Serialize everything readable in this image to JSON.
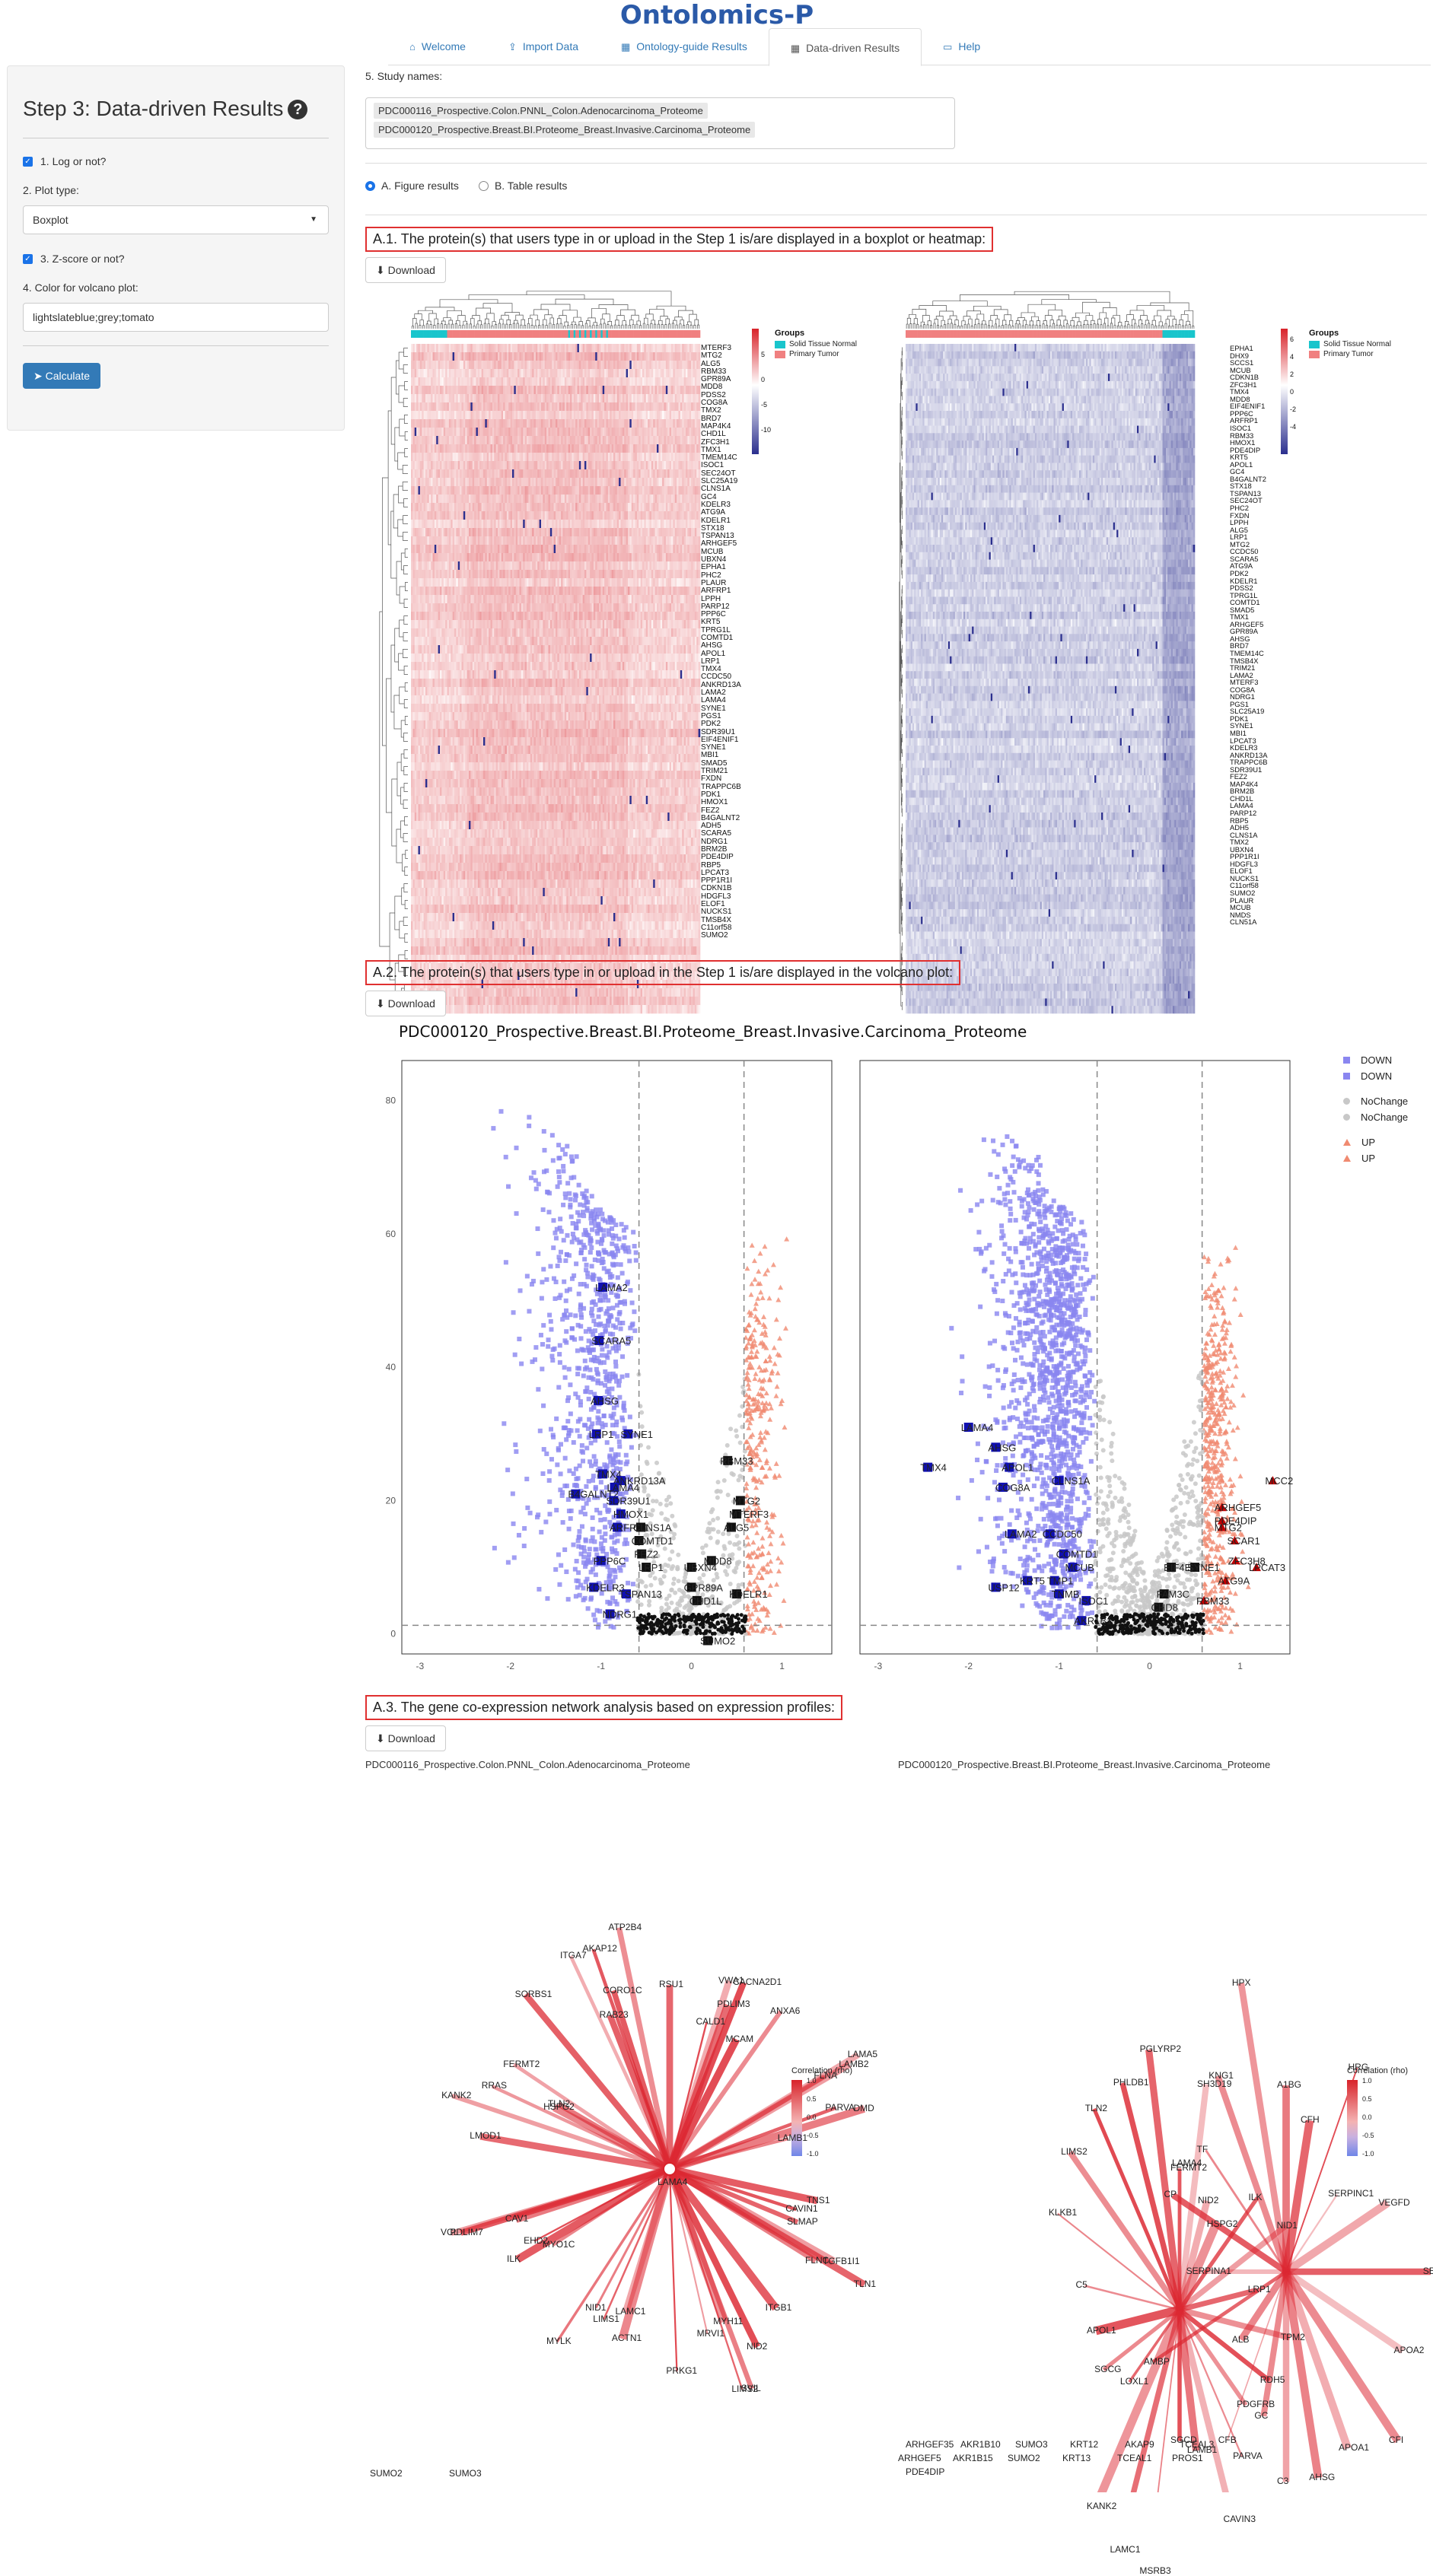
{
  "brand": "Ontolomics-P",
  "tabs": [
    {
      "label": "Welcome",
      "icon": "home-icon",
      "glyph": "⌂",
      "active": false
    },
    {
      "label": "Import Data",
      "icon": "upload-icon",
      "glyph": "⇪",
      "active": false
    },
    {
      "label": "Ontology-guide Results",
      "icon": "table-icon",
      "glyph": "▦",
      "active": false
    },
    {
      "label": "Data-driven Results",
      "icon": "table-icon",
      "glyph": "▦",
      "active": true
    },
    {
      "label": "Help",
      "icon": "file-icon",
      "glyph": "▭",
      "active": false
    }
  ],
  "sidebar": {
    "title": "Step 3: Data-driven Results",
    "log_label": "1. Log or not?",
    "plot_type_label": "2. Plot type:",
    "plot_type_value": "Boxplot",
    "zscore_label": "3. Z-score or not?",
    "color_label": "4. Color for volcano plot:",
    "color_value": "lightslateblue;grey;tomato",
    "calculate_label": "Calculate"
  },
  "main": {
    "study_label": "5. Study names:",
    "studies": [
      "PDC000116_Prospective.Colon.PNNL_Colon.Adenocarcinoma_Proteome",
      "PDC000120_Prospective.Breast.BI.Proteome_Breast.Invasive.Carcinoma_Proteome"
    ],
    "radio_figure": "A. Figure results",
    "radio_table": "B. Table results",
    "download_label": "Download",
    "section_a1": "A.1. The protein(s) that users type in or upload in the Step 1 is/are displayed in a boxplot or heatmap:",
    "section_a2": "A.2. The protein(s) that users type in or upload in the Step 1 is/are displayed in the volcano plot:",
    "section_a3": "A.3. The gene co-expression network analysis based on expression profiles:"
  },
  "heatmap": {
    "legend_groups_title": "Groups",
    "group_normal": "Solid Tissue Normal",
    "group_tumor": "Primary Tumor",
    "left_scale_ticks": [
      "5",
      "0",
      "-5",
      "-10"
    ],
    "right_scale_ticks": [
      "6",
      "4",
      "2",
      "0",
      "-2",
      "-4"
    ],
    "left_genes": [
      "MTERF3",
      "MTG2",
      "ALG5",
      "RBM33",
      "GPR89A",
      "MDD8",
      "PDSS2",
      "COG8A",
      "TMX2",
      "BRD7",
      "MAP4K4",
      "CHD1L",
      "ZFC3H1",
      "TMX1",
      "TMEM14C",
      "ISOC1",
      "SEC24OT",
      "SLC25A19",
      "CLNS1A",
      "GC4",
      "KDELR3",
      "ATG9A",
      "KDELR1",
      "STX18",
      "TSPAN13",
      "ARHGEF5",
      "MCUB",
      "UBXN4",
      "EPHA1",
      "PHC2",
      "PLAUR",
      "ARFRP1",
      "LPPH",
      "PARP12",
      "PPP6C",
      "KRT5",
      "TPRG1L",
      "COMTD1",
      "AHSG",
      "APOL1",
      "LRP1",
      "TMX4",
      "CCDC50",
      "ANKRD13A",
      "LAMA2",
      "LAMA4",
      "SYNE1",
      "PGS1",
      "PDK2",
      "SDR39U1",
      "EIF4ENIF1",
      "SYNE1",
      "MBI1",
      "SMAD5",
      "TRIM21",
      "FXDN",
      "TRAPPC6B",
      "PDK1",
      "HMOX1",
      "FEZ2",
      "B4GALNT2",
      "ADH5",
      "SCARA5",
      "NDRG1",
      "BRM2B",
      "PDE4DIP",
      "RBP5",
      "LPCAT3",
      "PPP1R1I",
      "CDKN1B",
      "HDGFL3",
      "ELOF1",
      "NUCKS1",
      "TMSB4X",
      "C11orf58",
      "SUMO2"
    ],
    "right_genes": [
      "EPHA1",
      "DHX9",
      "SCCS1",
      "MCUB",
      "CDKN1B",
      "ZFC3H1",
      "TMX4",
      "MDD8",
      "EIF4ENIF1",
      "PPP6C",
      "ARFRP1",
      "ISOC1",
      "RBM33",
      "HMOX1",
      "PDE4DIP",
      "KRT5",
      "APOL1",
      "GC4",
      "B4GALNT2",
      "STX18",
      "TSPAN13",
      "SEC24OT",
      "PHC2",
      "FXDN",
      "LPPH",
      "ALG5",
      "LRP1",
      "MTG2",
      "CCDC50",
      "SCARA5",
      "ATG9A",
      "PDK2",
      "KDELR1",
      "PDSS2",
      "TPRG1L",
      "COMTD1",
      "SMAD5",
      "TMX1",
      "ARHGEF5",
      "GPR89A",
      "AHSG",
      "BRD7",
      "TMEM14C",
      "TMSB4X",
      "TRIM21",
      "LAMA2",
      "MTERF3",
      "COG8A",
      "NDRG1",
      "PGS1",
      "SLC25A19",
      "PDK1",
      "SYNE1",
      "MBI1",
      "LPCAT3",
      "KDELR3",
      "ANKRD13A",
      "TRAPPC6B",
      "SDR39U1",
      "FEZ2",
      "MAP4K4",
      "BRM2B",
      "CHD1L",
      "LAMA4",
      "PARP12",
      "RBP5",
      "ADH5",
      "CLNS1A",
      "TMX2",
      "UBXN4",
      "PPP1R1I",
      "HDGFL3",
      "ELOF1",
      "NUCKS1",
      "C11orf58",
      "SUMO2",
      "PLAUR",
      "MCUB",
      "NMDS",
      "CLN51A"
    ]
  },
  "volcano": {
    "title": "PDC000120_Prospective.Breast.BI.Proteome_Breast.Invasive.Carcinoma_Proteome",
    "y_ticks": [
      "80",
      "60",
      "40",
      "20",
      "0"
    ],
    "x_ticks_left": [
      "-3",
      "-2",
      "-1",
      "0",
      "1"
    ],
    "x_ticks_right": [
      "-3",
      "-2",
      "-1",
      "0",
      "1"
    ],
    "legend": [
      {
        "label": "DOWN",
        "color": "#8a86f0",
        "shape": "square"
      },
      {
        "label": "DOWN",
        "color": "#8a86f0",
        "shape": "square"
      },
      {
        "label": "NoChange",
        "color": "#c8c8c8",
        "shape": "circle"
      },
      {
        "label": "NoChange",
        "color": "#c8c8c8",
        "shape": "circle"
      },
      {
        "label": "UP",
        "color": "#f08a70",
        "shape": "triangle"
      },
      {
        "label": "UP",
        "color": "#f08a70",
        "shape": "triangle"
      }
    ],
    "left_labels": [
      {
        "t": "LAMA2",
        "x": -0.98,
        "y": 52
      },
      {
        "t": "SCARA5",
        "x": -1.02,
        "y": 44
      },
      {
        "t": "AHSG",
        "x": -1.03,
        "y": 35
      },
      {
        "t": "LRP1",
        "x": -1.05,
        "y": 30
      },
      {
        "t": "SYNE1",
        "x": -0.7,
        "y": 30
      },
      {
        "t": "TMX4",
        "x": -0.98,
        "y": 24
      },
      {
        "t": "ANKRD13A",
        "x": -0.78,
        "y": 23
      },
      {
        "t": "LAMA4",
        "x": -0.85,
        "y": 22
      },
      {
        "t": "B4GALNT2",
        "x": -1.28,
        "y": 21
      },
      {
        "t": "SDR39U1",
        "x": -0.86,
        "y": 20
      },
      {
        "t": "HMOX1",
        "x": -0.78,
        "y": 18
      },
      {
        "t": "ARFRP1",
        "x": -0.82,
        "y": 16
      },
      {
        "t": "CLNS1A",
        "x": -0.56,
        "y": 16
      },
      {
        "t": "COMTD1",
        "x": -0.58,
        "y": 14
      },
      {
        "t": "FEZ2",
        "x": -0.55,
        "y": 12
      },
      {
        "t": "LRP1",
        "x": -0.5,
        "y": 10
      },
      {
        "t": "PPP6C",
        "x": -1.0,
        "y": 11
      },
      {
        "t": "KDELR3",
        "x": -1.08,
        "y": 7
      },
      {
        "t": "TSPAN13",
        "x": -0.72,
        "y": 6
      },
      {
        "t": "NDRG1",
        "x": -0.9,
        "y": 3
      },
      {
        "t": "RBM33",
        "x": 0.4,
        "y": 26
      },
      {
        "t": "MTG2",
        "x": 0.54,
        "y": 20
      },
      {
        "t": "MTERF3",
        "x": 0.5,
        "y": 18
      },
      {
        "t": "ALG5",
        "x": 0.44,
        "y": 16
      },
      {
        "t": "MDD8",
        "x": 0.22,
        "y": 11
      },
      {
        "t": "UBXN4",
        "x": 0.0,
        "y": 10
      },
      {
        "t": "GPR89A",
        "x": 0.0,
        "y": 7
      },
      {
        "t": "KDELR1",
        "x": 0.5,
        "y": 6
      },
      {
        "t": "CHD1L",
        "x": 0.06,
        "y": 5
      },
      {
        "t": "SUMO2",
        "x": 0.18,
        "y": -1
      }
    ],
    "right_labels": [
      {
        "t": "LAMA4",
        "x": -2.0,
        "y": 31
      },
      {
        "t": "AHSG",
        "x": -1.7,
        "y": 28
      },
      {
        "t": "TMX4",
        "x": -2.45,
        "y": 25
      },
      {
        "t": "APOL1",
        "x": -1.55,
        "y": 25
      },
      {
        "t": "COG8A",
        "x": -1.62,
        "y": 22
      },
      {
        "t": "CLNS1A",
        "x": -1.0,
        "y": 23
      },
      {
        "t": "LAMA2",
        "x": -1.52,
        "y": 15
      },
      {
        "t": "CCDC50",
        "x": -1.1,
        "y": 15
      },
      {
        "t": "COMTD1",
        "x": -0.95,
        "y": 12
      },
      {
        "t": "MCUB",
        "x": -0.85,
        "y": 10
      },
      {
        "t": "KRT5",
        "x": -1.35,
        "y": 8
      },
      {
        "t": "TNMB",
        "x": -1.0,
        "y": 6
      },
      {
        "t": "USP12",
        "x": -1.7,
        "y": 7
      },
      {
        "t": "TMP1",
        "x": -1.05,
        "y": 8
      },
      {
        "t": "ISOC1",
        "x": -0.7,
        "y": 5
      },
      {
        "t": "EIF4E",
        "x": 0.24,
        "y": 10
      },
      {
        "t": "SYNE1",
        "x": 0.5,
        "y": 10
      },
      {
        "t": "FAM3C",
        "x": 0.16,
        "y": 6
      },
      {
        "t": "ARHGEF5",
        "x": 0.8,
        "y": 19
      },
      {
        "t": "PDE4DIP",
        "x": 0.8,
        "y": 17
      },
      {
        "t": "MTG2",
        "x": 0.8,
        "y": 16
      },
      {
        "t": "SCAR1",
        "x": 0.94,
        "y": 14
      },
      {
        "t": "ZFC3H8",
        "x": 0.95,
        "y": 11
      },
      {
        "t": "LPCAT3",
        "x": 1.18,
        "y": 10
      },
      {
        "t": "ATG9A",
        "x": 0.84,
        "y": 8
      },
      {
        "t": "RBM33",
        "x": 0.6,
        "y": 5
      },
      {
        "t": "MCC2",
        "x": 1.36,
        "y": 23
      },
      {
        "t": "AKR1B1",
        "x": -0.75,
        "y": 2
      },
      {
        "t": "CHD8",
        "x": 0.1,
        "y": 4
      }
    ]
  },
  "network": {
    "left_title": "PDC000116_Prospective.Colon.PNNL_Colon.Adenocarcinoma_Proteome",
    "right_title": "PDC000120_Prospective.Breast.BI.Proteome_Breast.Invasive.Carcinoma_Proteome",
    "scale_title": "Correlation (rho)",
    "scale_ticks": [
      "1.0",
      "0.5",
      "0.0",
      "-0.5",
      "-1.0"
    ],
    "left_nodes": [
      "RSU1",
      "PDLIM3",
      "MCAM",
      "CACNA2D1",
      "CALD1",
      "VWA1",
      "ANXA6",
      "LAMA5",
      "DMD",
      "PARVA",
      "LAMB2",
      "FLNA",
      "LAMB1",
      "TNS1",
      "TLN1",
      "FLNC",
      "SLMAP",
      "CAVIN1",
      "TGFB1I1",
      "ITGB1",
      "LIMS2",
      "MRVI1",
      "MYH11",
      "NID2",
      "SVIL",
      "PRKG1",
      "LAMA4",
      "NID1",
      "LIMS1",
      "ACTN1",
      "LAMC1",
      "MYLK",
      "MYO1C",
      "PDLIM7",
      "CAV1",
      "EHD2",
      "ILK",
      "VCL",
      "LMOD1",
      "TLN2",
      "FERMT2",
      "RRAS",
      "KANK2",
      "HSPG2",
      "SORBS1",
      "AKAP12",
      "ATP2B4",
      "CORO1C",
      "ITGA7",
      "RAB23"
    ],
    "right_nodes": [
      "A1BG",
      "CFH",
      "HRG",
      "SERPINC1",
      "LIMS2",
      "FERMT2",
      "SH3D19",
      "VEGFD",
      "PHLDB1",
      "SERPINA7",
      "NID2",
      "HSPG2",
      "APOA2",
      "ILK",
      "CFI",
      "TLN2",
      "KLKB1",
      "NID1",
      "PGLYRP2",
      "APOA1",
      "LRP1",
      "TPM2",
      "AHSG",
      "RDH5",
      "PDGFRB",
      "LAMA4",
      "C3",
      "GC",
      "CFB",
      "PARVA",
      "ALB",
      "CAVIN3",
      "AMBP",
      "LAMB1",
      "SGCD",
      "SERPINA1",
      "APOL1",
      "MSRB3",
      "CP",
      "LAMC1",
      "TF",
      "C5",
      "KANK2",
      "KNG1",
      "SGCG",
      "LOXL1",
      "HPX"
    ],
    "left_isolated": [
      "SUMO2",
      "SUMO3"
    ],
    "right_isolated": [
      "ARHGEF35",
      "AKR1B10",
      "SUMO3",
      "KRT12",
      "AKAP9",
      "TCEAL3",
      "ARHGEF5",
      "AKR1B15",
      "SUMO2",
      "KRT13",
      "TCEAL1",
      "PROS1",
      "PDE4DIP"
    ]
  },
  "colors": {
    "accent": "#337ab7",
    "section_border": "#e03030",
    "normal_group": "#19c5cc",
    "tumor_group": "#f08080",
    "heat_high": "#d8232a",
    "heat_mid": "#ffffff",
    "heat_low": "#2b2f8e",
    "volcano_down": "#8a86f0",
    "volcano_none": "#c8c8c8",
    "volcano_up": "#f08a70",
    "volcano_highlight_down": "#1010b0",
    "volcano_highlight_up": "#c00000"
  }
}
